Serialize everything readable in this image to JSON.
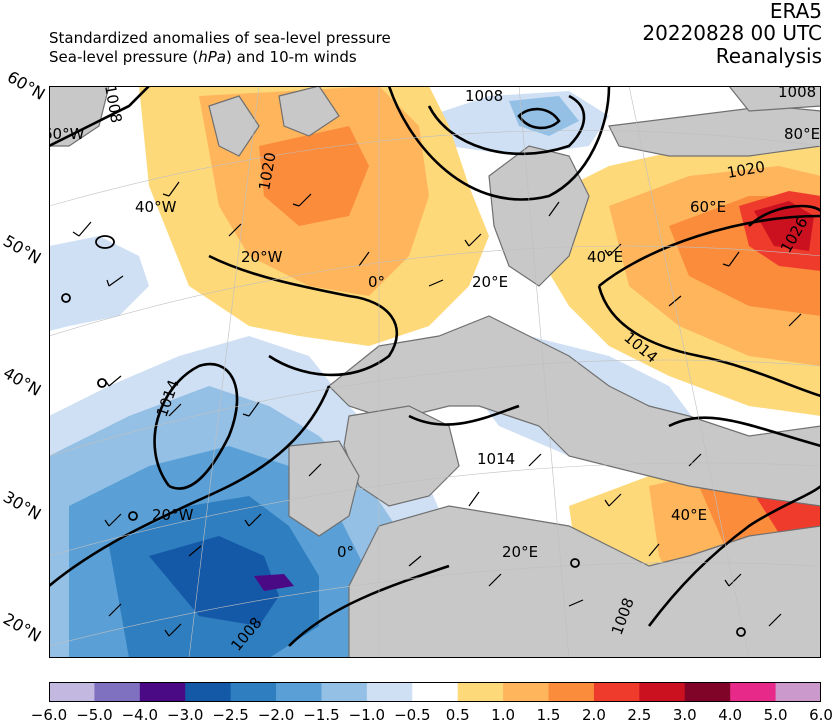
{
  "header": {
    "line1": "Standardized anomalies of sea-level pressure",
    "line2_pre": "Sea-level pressure (",
    "line2_unit": "hPa",
    "line2_post": ") and 10-m winds",
    "model": "ERA5",
    "datetime": "20220828 00 UTC",
    "product": "Reanalysis"
  },
  "map": {
    "lat_labels": [
      "60°N",
      "50°N",
      "40°N",
      "30°N",
      "20°N"
    ],
    "lon_labels_upper": [
      "60°W",
      "40°W",
      "20°W",
      "0°",
      "20°E",
      "40°E",
      "60°E",
      "80°E"
    ],
    "lon_labels_lower": [
      "20°W",
      "0°",
      "20°E",
      "40°E"
    ],
    "contour_labels": [
      "1008",
      "1008",
      "1008",
      "1020",
      "1020",
      "1026",
      "1014",
      "1014",
      "1014",
      "1008",
      "1008"
    ],
    "colors": {
      "land": "#c8c8c8",
      "ocean": "#ffffff",
      "border": "#707070",
      "contour": "#000000"
    }
  },
  "colorbar": {
    "ticks": [
      "−6.0",
      "−5.0",
      "−4.0",
      "−3.0",
      "−2.5",
      "−2.0",
      "−1.5",
      "−1.0",
      "−0.5",
      "0.5",
      "1.0",
      "1.5",
      "2.0",
      "2.5",
      "3.0",
      "4.0",
      "5.0",
      "6.0"
    ],
    "colors": [
      "#c3b9e0",
      "#8070c0",
      "#4b0a85",
      "#1459a8",
      "#2f7ec0",
      "#5aa0d6",
      "#94c0e6",
      "#cfe0f4",
      "#ffffff",
      "#fed97a",
      "#feb55c",
      "#fb8c3c",
      "#ef3b2c",
      "#cb101f",
      "#7f0428",
      "#e7298a",
      "#cc99cc"
    ]
  }
}
